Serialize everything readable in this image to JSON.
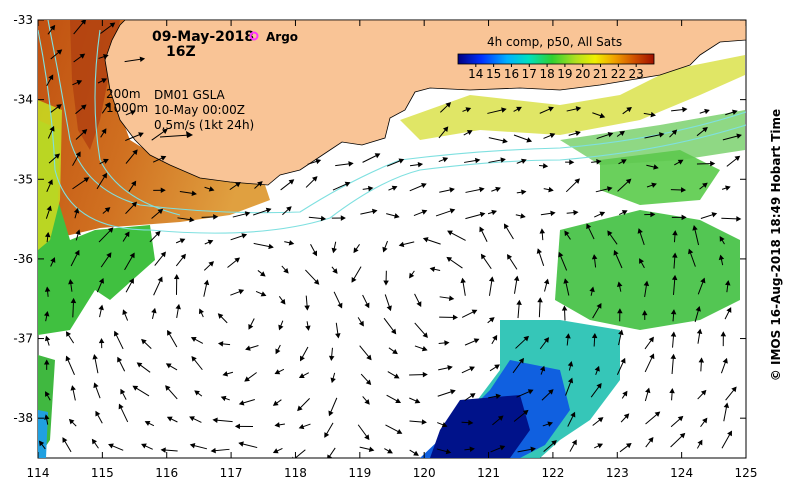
{
  "map": {
    "date": "09-May-2018",
    "hour": "16Z",
    "argo_label": "Argo",
    "isobath_200": "200m",
    "isobath_1000": "1000m",
    "gsla_line1": "DM01 GSLA",
    "gsla_line2": "10-May 00:00Z",
    "vector_scale": "0.5m/s (1kt 24h)",
    "colorbar": {
      "title": "4h comp, p50, All Sats",
      "min": 13,
      "max": 24,
      "ticks": [
        "14",
        "15",
        "16",
        "17",
        "18",
        "19",
        "20",
        "21",
        "22",
        "23"
      ]
    },
    "x_ticks": [
      "114",
      "115",
      "116",
      "117",
      "118",
      "119",
      "120",
      "121",
      "122",
      "123",
      "124",
      "125"
    ],
    "y_ticks": [
      "-33",
      "-34",
      "-35",
      "-36",
      "-37",
      "-38"
    ],
    "lon_range": [
      114,
      125
    ],
    "lat_range": [
      -38.5,
      -33
    ],
    "colors": {
      "land": "#F9C496",
      "argo": "#ff33ff",
      "contour": "#7fe0e0"
    },
    "credit": "© IMOS 16-Aug-2018 18:49 Hobart Time"
  }
}
